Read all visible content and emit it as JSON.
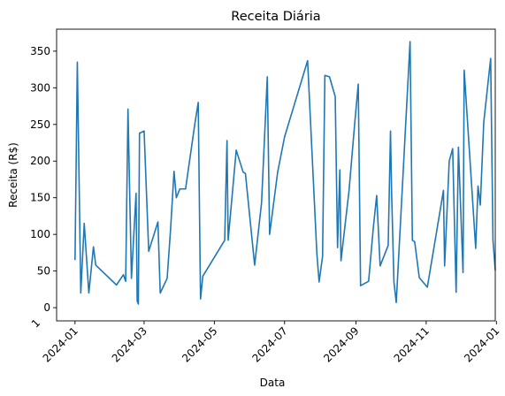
{
  "chart_data": {
    "type": "line",
    "title": "Receita Diária",
    "xlabel": "Data",
    "ylabel": "Receita (R$)",
    "line_color": "#1f77b4",
    "xlim": [
      "2023-12-16",
      "2024-12-31"
    ],
    "ylim": [
      -18,
      380
    ],
    "x_ticks": [
      "2024-01",
      "2024-03",
      "2024-05",
      "2024-07",
      "2024-09",
      "2024-11",
      "2024-01"
    ],
    "x_tick_dates": [
      "2024-01-01",
      "2024-03-01",
      "2024-05-01",
      "2024-07-01",
      "2024-09-01",
      "2024-11-01",
      "2025-01-01"
    ],
    "y_ticks": [
      0,
      50,
      100,
      150,
      200,
      250,
      300,
      350
    ],
    "stray_tick_label": "1",
    "grid": false,
    "series": [
      {
        "points": [
          [
            "2024-01-01",
            65
          ],
          [
            "2024-01-03",
            335
          ],
          [
            "2024-01-06",
            20
          ],
          [
            "2024-01-09",
            115
          ],
          [
            "2024-01-13",
            20
          ],
          [
            "2024-01-17",
            83
          ],
          [
            "2024-01-19",
            58
          ],
          [
            "2024-02-06",
            31
          ],
          [
            "2024-02-12",
            45
          ],
          [
            "2024-02-14",
            36
          ],
          [
            "2024-02-16",
            271
          ],
          [
            "2024-02-19",
            40
          ],
          [
            "2024-02-23",
            156
          ],
          [
            "2024-02-24",
            9
          ],
          [
            "2024-02-25",
            5
          ],
          [
            "2024-02-26",
            238
          ],
          [
            "2024-03-01",
            241
          ],
          [
            "2024-03-05",
            77
          ],
          [
            "2024-03-13",
            117
          ],
          [
            "2024-03-15",
            20
          ],
          [
            "2024-03-21",
            40
          ],
          [
            "2024-03-24",
            107
          ],
          [
            "2024-03-27",
            186
          ],
          [
            "2024-03-29",
            150
          ],
          [
            "2024-04-01",
            162
          ],
          [
            "2024-04-06",
            162
          ],
          [
            "2024-04-14",
            250
          ],
          [
            "2024-04-17",
            280
          ],
          [
            "2024-04-19",
            12
          ],
          [
            "2024-04-21",
            43
          ],
          [
            "2024-05-10",
            92
          ],
          [
            "2024-05-12",
            228
          ],
          [
            "2024-05-13",
            92
          ],
          [
            "2024-05-20",
            215
          ],
          [
            "2024-05-26",
            185
          ],
          [
            "2024-05-28",
            183
          ],
          [
            "2024-06-05",
            58
          ],
          [
            "2024-06-11",
            143
          ],
          [
            "2024-06-16",
            315
          ],
          [
            "2024-06-18",
            100
          ],
          [
            "2024-06-25",
            185
          ],
          [
            "2024-07-01",
            233
          ],
          [
            "2024-07-21",
            337
          ],
          [
            "2024-07-29",
            75
          ],
          [
            "2024-07-31",
            35
          ],
          [
            "2024-08-03",
            70
          ],
          [
            "2024-08-05",
            317
          ],
          [
            "2024-08-09",
            315
          ],
          [
            "2024-08-14",
            288
          ],
          [
            "2024-08-16",
            82
          ],
          [
            "2024-08-18",
            188
          ],
          [
            "2024-08-19",
            64
          ],
          [
            "2024-08-26",
            160
          ],
          [
            "2024-08-31",
            253
          ],
          [
            "2024-09-03",
            305
          ],
          [
            "2024-09-05",
            30
          ],
          [
            "2024-09-12",
            36
          ],
          [
            "2024-09-16",
            108
          ],
          [
            "2024-09-19",
            153
          ],
          [
            "2024-09-22",
            57
          ],
          [
            "2024-09-29",
            85
          ],
          [
            "2024-10-01",
            241
          ],
          [
            "2024-10-02",
            155
          ],
          [
            "2024-10-04",
            35
          ],
          [
            "2024-10-06",
            7
          ],
          [
            "2024-10-18",
            363
          ],
          [
            "2024-10-20",
            92
          ],
          [
            "2024-10-22",
            90
          ],
          [
            "2024-10-26",
            41
          ],
          [
            "2024-11-02",
            28
          ],
          [
            "2024-11-12",
            122
          ],
          [
            "2024-11-16",
            160
          ],
          [
            "2024-11-17",
            57
          ],
          [
            "2024-11-21",
            200
          ],
          [
            "2024-11-24",
            217
          ],
          [
            "2024-11-27",
            21
          ],
          [
            "2024-11-29",
            219
          ],
          [
            "2024-12-03",
            48
          ],
          [
            "2024-12-04",
            324
          ],
          [
            "2024-12-14",
            81
          ],
          [
            "2024-12-16",
            166
          ],
          [
            "2024-12-18",
            140
          ],
          [
            "2024-12-21",
            253
          ],
          [
            "2024-12-27",
            340
          ],
          [
            "2024-12-29",
            92
          ],
          [
            "2024-12-31",
            51
          ]
        ]
      }
    ]
  }
}
